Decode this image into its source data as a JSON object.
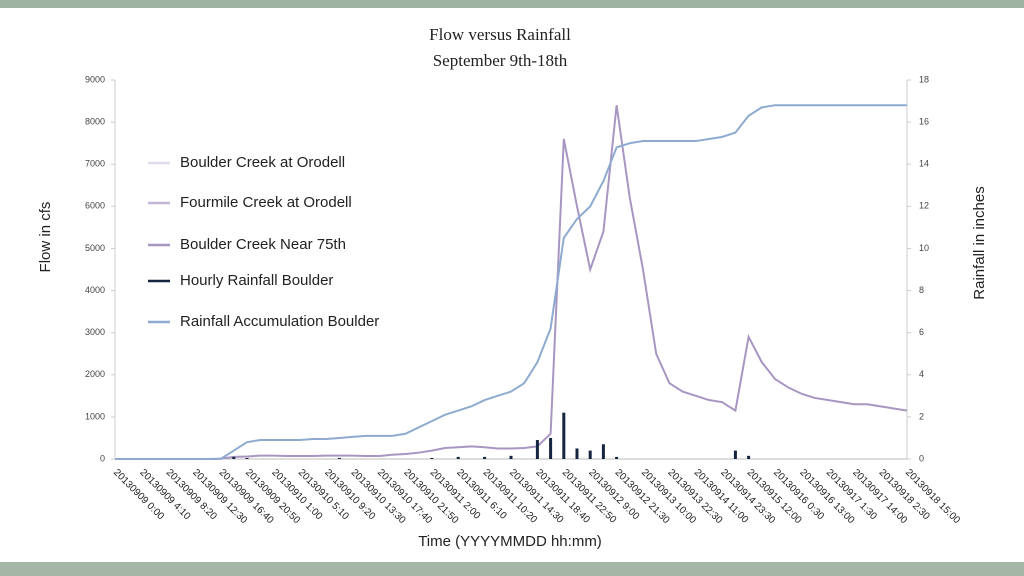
{
  "chart_data": {
    "type": "line",
    "title": "Flow versus Rainfall",
    "subtitle": "September 9th-18th",
    "y_label": "Flow in cfs",
    "y2_label": "Rainfall in inches",
    "x_label": "Time (YYYYMMDD hh:mm)",
    "ylim": [
      0,
      9000
    ],
    "yticks": [
      0,
      1000,
      2000,
      3000,
      4000,
      5000,
      6000,
      7000,
      8000,
      9000
    ],
    "y2lim": [
      0,
      18
    ],
    "y2ticks": [
      0,
      2,
      4,
      6,
      8,
      10,
      12,
      14,
      16,
      18
    ],
    "categories": [
      "20130909 0:00",
      null,
      "20130909 4:10",
      null,
      "20130909 8:20",
      null,
      "20130909 12:30",
      null,
      "20130909 16:40",
      null,
      "20130909 20:50",
      null,
      "20130910 1:00",
      null,
      "20130910 5:10",
      null,
      "20130910 9:20",
      null,
      "20130910 13:30",
      null,
      "20130910 17:40",
      null,
      "20130910 21:50",
      null,
      "20130911 2:00",
      null,
      "20130911 6:10",
      null,
      "20130911 10:20",
      null,
      "20130911 14:30",
      null,
      "20130911 18:40",
      null,
      "20130911 22:50",
      null,
      "20130912 9:00",
      null,
      "20130912 21:30",
      null,
      "20130913 10:00",
      null,
      "20130913 22:30",
      null,
      "20130914 11:00",
      null,
      "20130914 23:30",
      null,
      "20130915 12:00",
      null,
      "20130916 0:30",
      null,
      "20130916 13:00",
      null,
      "20130917 1:30",
      null,
      "20130917 14:00",
      null,
      "20130918 2:30",
      null,
      "20130918 15:00"
    ],
    "series": [
      {
        "name": "Boulder Creek at Orodell",
        "type": "line",
        "color": "#e4dcec",
        "values": [
          null,
          null,
          null,
          null,
          null,
          null,
          null,
          null,
          null,
          null,
          null,
          null,
          null,
          null,
          null,
          null,
          null,
          null,
          null,
          null,
          null,
          null,
          null,
          null,
          null,
          null,
          null,
          null,
          null,
          null,
          null,
          null,
          null,
          null,
          null,
          null,
          null,
          null,
          null,
          null,
          null,
          null,
          null,
          null,
          null,
          null,
          null,
          null,
          null,
          null,
          null,
          null,
          null,
          null,
          null,
          null,
          null,
          null,
          null,
          null,
          null
        ]
      },
      {
        "name": "Fourmile Creek at Orodell",
        "type": "line",
        "color": "#c4b6d6",
        "values": [
          null,
          null,
          null,
          null,
          null,
          null,
          null,
          null,
          null,
          null,
          null,
          null,
          null,
          null,
          null,
          null,
          null,
          null,
          null,
          null,
          null,
          null,
          null,
          null,
          null,
          null,
          null,
          null,
          null,
          null,
          null,
          null,
          null,
          null,
          null,
          null,
          null,
          null,
          null,
          null,
          null,
          null,
          null,
          null,
          null,
          null,
          null,
          null,
          null,
          null,
          null,
          null,
          null,
          null,
          null,
          null,
          null,
          null,
          null,
          null,
          null
        ]
      },
      {
        "name": "Boulder Creek Near 75th",
        "type": "line",
        "color": "#a896c2",
        "values": [
          0,
          0,
          0,
          0,
          0,
          0,
          0,
          0,
          10,
          50,
          60,
          80,
          80,
          70,
          70,
          70,
          80,
          80,
          80,
          70,
          70,
          100,
          120,
          150,
          200,
          260,
          280,
          300,
          280,
          250,
          250,
          260,
          300,
          600,
          7600,
          6000,
          4500,
          5400,
          8400,
          6200,
          4500,
          2500,
          1800,
          1600,
          1500,
          1400,
          1350,
          1150,
          2900,
          2300,
          1900,
          1700,
          1550,
          1450,
          1400,
          1350,
          1300,
          1300,
          1250,
          1200,
          1150
        ]
      },
      {
        "name": "Hourly Rainfall Boulder",
        "type": "bar",
        "axis": "y2",
        "color": "#15243f",
        "values": [
          0,
          0,
          0,
          0,
          0,
          0,
          0,
          0,
          0,
          0.1,
          0.05,
          0,
          0,
          0,
          0,
          0,
          0,
          0.05,
          0,
          0,
          0,
          0,
          0,
          0,
          0.05,
          0,
          0.1,
          0,
          0.1,
          0,
          0.15,
          0,
          0.9,
          1.0,
          2.2,
          0.5,
          0.4,
          0.7,
          0.1,
          0,
          0,
          0,
          0,
          0,
          0,
          0,
          0,
          0.4,
          0.15,
          0,
          0,
          0,
          0,
          0,
          0,
          0,
          0,
          0,
          0,
          0,
          0
        ]
      },
      {
        "name": "Rainfall Accumulation Boulder",
        "type": "line",
        "axis": "y2",
        "color": "#8eabcf",
        "values": [
          0,
          0,
          0,
          0,
          0,
          0,
          0,
          0,
          0,
          0.4,
          0.8,
          0.9,
          0.9,
          0.9,
          0.9,
          0.95,
          0.95,
          1.0,
          1.05,
          1.1,
          1.1,
          1.1,
          1.2,
          1.5,
          1.8,
          2.1,
          2.3,
          2.5,
          2.8,
          3.0,
          3.2,
          3.6,
          4.6,
          6.2,
          10.5,
          11.4,
          12.0,
          13.2,
          14.8,
          15.0,
          15.1,
          15.1,
          15.1,
          15.1,
          15.1,
          15.2,
          15.3,
          15.5,
          16.3,
          16.7,
          16.8,
          16.8,
          16.8,
          16.8,
          16.8,
          16.8,
          16.8,
          16.8,
          16.8,
          16.8,
          16.8
        ]
      }
    ]
  }
}
